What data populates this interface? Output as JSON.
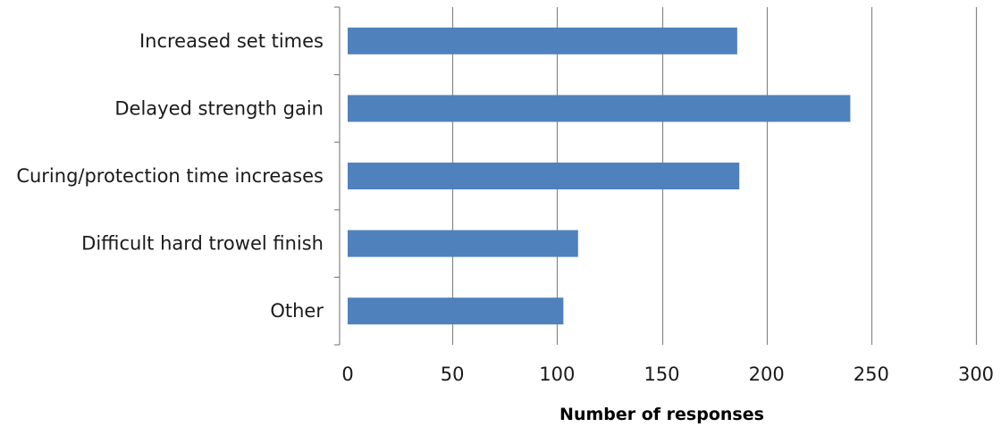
{
  "chart_data": {
    "type": "bar",
    "orientation": "horizontal",
    "categories": [
      "Increased set times",
      "Delayed strength gain",
      "Curing/protection time increases",
      "Difficult hard trowel finish",
      "Other"
    ],
    "values": [
      186,
      240,
      187,
      110,
      103
    ],
    "xlabel": "Number of responses",
    "ylabel": "",
    "xlim": [
      0,
      300
    ],
    "x_ticks": [
      "0",
      "50",
      "100",
      "150",
      "200",
      "250",
      "300"
    ],
    "grid": "vertical",
    "legend": "none",
    "colors": {
      "bar": "#4f81bd",
      "grid": "#868686",
      "axis": "#868686"
    }
  }
}
